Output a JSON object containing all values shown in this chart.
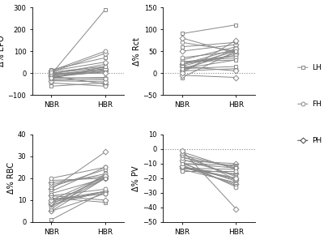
{
  "EPO_NBR": [
    -5,
    -30,
    -15,
    -25,
    -45,
    -10,
    -60,
    -20,
    5,
    -5,
    0,
    10,
    15,
    -20,
    -35,
    -5,
    10,
    -10,
    -15,
    -25,
    -5,
    5,
    -20
  ],
  "EPO_HBR": [
    290,
    -30,
    -50,
    30,
    -60,
    10,
    -45,
    20,
    90,
    40,
    25,
    50,
    70,
    10,
    -40,
    15,
    100,
    20,
    5,
    -20,
    0,
    30,
    -25
  ],
  "Rct_NBR": [
    -10,
    10,
    20,
    25,
    30,
    50,
    60,
    70,
    80,
    90,
    5,
    15,
    25,
    35,
    -5,
    10,
    20,
    5,
    15,
    25,
    0,
    10
  ],
  "Rct_HBR": [
    50,
    45,
    55,
    40,
    60,
    65,
    70,
    50,
    45,
    110,
    10,
    5,
    30,
    50,
    -10,
    15,
    40,
    55,
    50,
    35,
    75,
    30
  ],
  "RBC_NBR": [
    1,
    5,
    5,
    6,
    7,
    8,
    8,
    9,
    9,
    10,
    10,
    10,
    11,
    12,
    12,
    13,
    14,
    15,
    16,
    17,
    18,
    19,
    20
  ],
  "RBC_HBR": [
    14,
    13,
    20,
    22,
    20,
    14,
    21,
    20,
    14,
    14,
    13,
    21,
    9,
    15,
    10,
    20,
    25,
    32,
    24,
    22,
    21,
    20,
    25
  ],
  "PV_NBR": [
    -15,
    -13,
    -12,
    -10,
    -14,
    -12,
    -11,
    -9,
    -13,
    -7,
    -5,
    -8,
    -10,
    -6,
    -4,
    -2,
    -3,
    -1,
    -13,
    -15,
    -12,
    -10
  ],
  "PV_HBR": [
    -15,
    -20,
    -21,
    -22,
    -23,
    -24,
    -25,
    -26,
    -17,
    -18,
    -19,
    -10,
    -11,
    -12,
    -13,
    -14,
    -21,
    -41,
    -14,
    -15,
    -20,
    -13
  ],
  "gray": "#888888",
  "dark": "#444444",
  "markersize": 3.5,
  "linewidth": 0.7,
  "EPO_ylim": [
    -100,
    300
  ],
  "EPO_yticks": [
    -100,
    0,
    100,
    200,
    300
  ],
  "Rct_ylim": [
    -50,
    150
  ],
  "Rct_yticks": [
    -50,
    0,
    50,
    100,
    150
  ],
  "RBC_ylim": [
    0,
    40
  ],
  "RBC_yticks": [
    0,
    10,
    20,
    30,
    40
  ],
  "PV_ylim": [
    -50,
    10
  ],
  "PV_yticks": [
    -50,
    -40,
    -30,
    -20,
    -10,
    0,
    10
  ]
}
